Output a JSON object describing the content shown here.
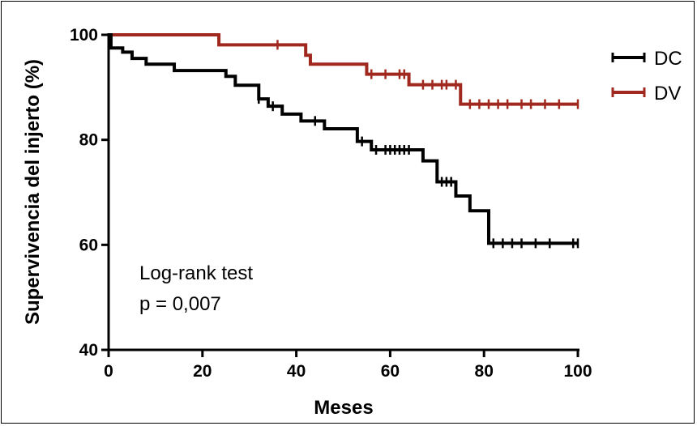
{
  "chart_data": {
    "type": "line",
    "step": true,
    "xlabel": "Meses",
    "ylabel": "Supervivencia del injerto (%)",
    "xlim": [
      0,
      100
    ],
    "ylim": [
      40,
      100
    ],
    "xticks": [
      "0",
      "20",
      "40",
      "60",
      "80",
      "100"
    ],
    "yticks": [
      "40",
      "60",
      "80",
      "100"
    ],
    "legend_position": "top-right",
    "annotation": [
      "Log-rank test",
      "p = 0,007"
    ],
    "series": [
      {
        "name": "DC",
        "color": "#000000",
        "x": [
          0,
          0.5,
          3,
          5,
          8,
          14,
          25,
          27,
          32,
          34,
          37,
          41,
          46,
          53,
          56,
          67,
          70,
          74,
          77,
          79,
          81,
          100
        ],
        "y": [
          100,
          97.5,
          96.7,
          95.5,
          94.4,
          93.2,
          92.1,
          90.4,
          87.8,
          86.4,
          84.9,
          83.6,
          82.1,
          79.7,
          78.1,
          76.0,
          72.0,
          69.3,
          66.5,
          66.5,
          60.3,
          60.3
        ],
        "censor_x": [
          32,
          35,
          44,
          54,
          57,
          59,
          60,
          61,
          62,
          63,
          64,
          71,
          72,
          73,
          82,
          84,
          86,
          88,
          91,
          94,
          99,
          100
        ],
        "censor_y": [
          87.8,
          86.4,
          83.6,
          79.7,
          78.1,
          78.1,
          78.1,
          78.1,
          78.1,
          78.1,
          78.1,
          72.0,
          72.0,
          72.0,
          60.3,
          60.3,
          60.3,
          60.3,
          60.3,
          60.3,
          60.3,
          60.3
        ]
      },
      {
        "name": "DV",
        "color": "#A0281E",
        "x": [
          0,
          23.5,
          42,
          43,
          55,
          64,
          75,
          100
        ],
        "y": [
          100,
          98.1,
          96.1,
          94.4,
          92.5,
          90.5,
          86.8,
          86.8
        ],
        "censor_x": [
          36,
          56,
          59,
          62,
          63,
          67,
          69,
          71,
          72,
          74,
          77,
          79,
          81,
          83,
          85,
          88,
          90,
          93,
          96,
          100
        ],
        "censor_y": [
          98.1,
          92.5,
          92.5,
          92.5,
          92.5,
          90.5,
          90.5,
          90.5,
          90.5,
          90.5,
          86.8,
          86.8,
          86.8,
          86.8,
          86.8,
          86.8,
          86.8,
          86.8,
          86.8,
          86.8
        ]
      }
    ]
  }
}
